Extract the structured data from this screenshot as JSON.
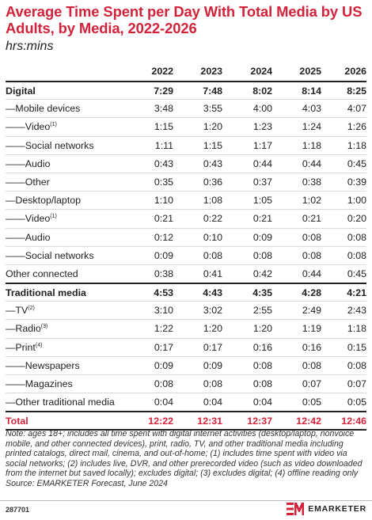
{
  "title": "Average Time Spent per Day With Total Media by US Adults, by Media, 2022-2026",
  "subtitle": "hrs:mins",
  "chart_data": {
    "type": "table",
    "columns": [
      "2022",
      "2023",
      "2024",
      "2025",
      "2026"
    ],
    "rows": [
      {
        "label": "Digital",
        "values": [
          "7:29",
          "7:48",
          "8:02",
          "8:14",
          "8:25"
        ]
      },
      {
        "label": "—Mobile devices",
        "values": [
          "3:48",
          "3:55",
          "4:00",
          "4:03",
          "4:07"
        ]
      },
      {
        "label": "——Video",
        "note": "(1)",
        "values": [
          "1:15",
          "1:20",
          "1:23",
          "1:24",
          "1:26"
        ]
      },
      {
        "label": "——Social networks",
        "values": [
          "1:11",
          "1:15",
          "1:17",
          "1:18",
          "1:18"
        ]
      },
      {
        "label": "——Audio",
        "values": [
          "0:43",
          "0:43",
          "0:44",
          "0:44",
          "0:45"
        ]
      },
      {
        "label": "——Other",
        "values": [
          "0:35",
          "0:36",
          "0:37",
          "0:38",
          "0:39"
        ]
      },
      {
        "label": "—Desktop/laptop",
        "values": [
          "1:10",
          "1:08",
          "1:05",
          "1:02",
          "1:00"
        ]
      },
      {
        "label": "——Video",
        "note": "(1)",
        "values": [
          "0:21",
          "0:22",
          "0:21",
          "0:21",
          "0:20"
        ]
      },
      {
        "label": "——Audio",
        "values": [
          "0:12",
          "0:10",
          "0:09",
          "0:08",
          "0:08"
        ]
      },
      {
        "label": "——Social networks",
        "values": [
          "0:09",
          "0:08",
          "0:08",
          "0:08",
          "0:08"
        ]
      },
      {
        "label": "Other connected",
        "values": [
          "0:38",
          "0:41",
          "0:42",
          "0:44",
          "0:45"
        ]
      },
      {
        "label": "Traditional media",
        "values": [
          "4:53",
          "4:43",
          "4:35",
          "4:28",
          "4:21"
        ]
      },
      {
        "label": "—TV",
        "note": "(2)",
        "values": [
          "3:10",
          "3:02",
          "2:55",
          "2:49",
          "2:43"
        ]
      },
      {
        "label": "—Radio",
        "note": "(3)",
        "values": [
          "1:22",
          "1:20",
          "1:20",
          "1:19",
          "1:18"
        ]
      },
      {
        "label": "—Print",
        "note": "(4)",
        "values": [
          "0:17",
          "0:17",
          "0:16",
          "0:16",
          "0:15"
        ]
      },
      {
        "label": "——Newspapers",
        "values": [
          "0:09",
          "0:09",
          "0:08",
          "0:08",
          "0:08"
        ]
      },
      {
        "label": "——Magazines",
        "values": [
          "0:08",
          "0:08",
          "0:08",
          "0:07",
          "0:07"
        ]
      },
      {
        "label": "—Other traditional media",
        "values": [
          "0:04",
          "0:04",
          "0:04",
          "0:05",
          "0:05"
        ]
      },
      {
        "label": "Total",
        "values": [
          "12:22",
          "12:31",
          "12:37",
          "12:42",
          "12:46"
        ]
      }
    ]
  },
  "note": "Note: ages 18+; includes all time spent with digital internet activities (desktop/laptop, nonvoice mobile, and other connected devices), print, radio, TV, and other traditional media including printed catalogs, direct mail, cinema, and out-of-home; (1) includes time spent with video via social networks; (2) includes live, DVR, and other prerecorded video (such as video downloaded from the internet but saved locally); excludes digital; (3) excludes digital; (4) offline reading only",
  "source": "Source: EMARKETER Forecast, June 2024",
  "chart_id": "287701",
  "brand": "EMARKETER",
  "colors": {
    "accent": "#d2233a",
    "text": "#222222",
    "rule": "#d9d9d9"
  }
}
